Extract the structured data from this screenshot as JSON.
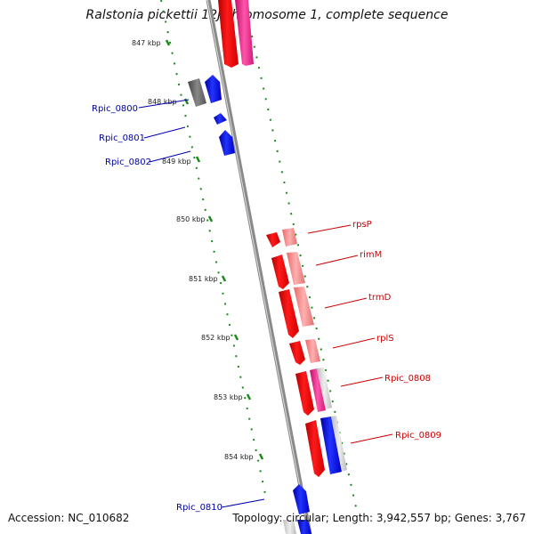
{
  "title": "Ralstonia pickettii 12J chromosome 1, complete sequence",
  "footer": {
    "accession": "Accession: NC_010682",
    "summary": "Topology: circular; Length: 3,942,557 bp; Genes: 3,767"
  },
  "ticks": [
    "847 kbp",
    "848 kbp",
    "849 kbp",
    "850 kbp",
    "851 kbp",
    "852 kbp",
    "853 kbp",
    "854 kbp"
  ],
  "genes_left": [
    "Rpic_0800",
    "Rpic_0801",
    "Rpic_0802",
    "Rpic_0810"
  ],
  "genes_right": [
    "rpsP",
    "rimM",
    "trmD",
    "rplS",
    "Rpic_0808",
    "Rpic_0809"
  ],
  "colors": {
    "backbone": "#8a8a8a",
    "tick_dots": "#1a8a1a",
    "forward_gene": "#0000ee",
    "reverse_gene": "#ee0000",
    "pink_gene": "#ee2288",
    "left_label": "#0000aa",
    "right_label": "#cc0000"
  }
}
